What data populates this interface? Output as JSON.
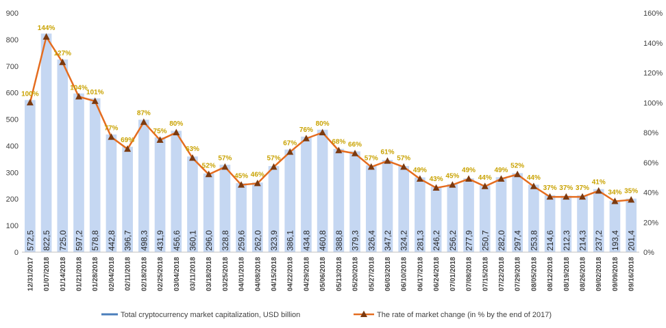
{
  "chart_data": {
    "type": "bar",
    "categories": [
      "12/31/2017",
      "01/07/2018",
      "01/14/2018",
      "01/21/2018",
      "01/28/2018",
      "02/04/2018",
      "02/11/2018",
      "02/18/2018",
      "02/25/2018",
      "03/04/2018",
      "03/11/2018",
      "03/18/2018",
      "03/25/2018",
      "04/01/2018",
      "04/08/2018",
      "04/15/2018",
      "04/22/2018",
      "04/29/2018",
      "05/06/2018",
      "05/13/2018",
      "05/20/2018",
      "05/27/2018",
      "06/03/2018",
      "06/10/2018",
      "06/17/2018",
      "06/24/2018",
      "07/01/2018",
      "07/08/2018",
      "07/15/2018",
      "07/22/2018",
      "07/29/2018",
      "08/05/2018",
      "08/12/2018",
      "08/19/2018",
      "08/26/2018",
      "09/02/2018",
      "09/09/2018",
      "09/16/2018"
    ],
    "series": [
      {
        "name": "Total cryptocurrency market capitalization, USD billion",
        "type": "bar",
        "axis": "left",
        "color": "#c5d7f2",
        "values": [
          572.5,
          822.5,
          725.0,
          597.2,
          578.8,
          442.8,
          396.7,
          498.3,
          431.9,
          456.6,
          360.1,
          296.0,
          328.8,
          259.6,
          262.0,
          323.9,
          386.1,
          434.8,
          460.8,
          388.8,
          379.3,
          326.4,
          347.2,
          324.2,
          281.3,
          246.2,
          256.2,
          277.9,
          250.7,
          282.0,
          297.4,
          253.8,
          214.6,
          212.3,
          214.3,
          237.2,
          193.4,
          201.4
        ],
        "labels": [
          "572,5",
          "822,5",
          "725,0",
          "597,2",
          "578,8",
          "442,8",
          "396,7",
          "498,3",
          "431,9",
          "456,6",
          "360,1",
          "296,0",
          "328,8",
          "259,6",
          "262,0",
          "323,9",
          "386,1",
          "434,8",
          "460,8",
          "388,8",
          "379,3",
          "326,4",
          "347,2",
          "324,2",
          "281,3",
          "246,2",
          "256,2",
          "277,9",
          "250,7",
          "282,0",
          "297,4",
          "253,8",
          "214,6",
          "212,3",
          "214,3",
          "237,2",
          "193,4",
          "201,4"
        ]
      },
      {
        "name": "The rate of market change (in % by the end of 2017)",
        "type": "line",
        "axis": "right",
        "color": "#e46c1f",
        "marker_color": "#7b3a10",
        "label_color": "#c9a200",
        "values": [
          100,
          144,
          127,
          104,
          101,
          77,
          69,
          87,
          75,
          80,
          63,
          52,
          57,
          45,
          46,
          57,
          67,
          76,
          80,
          68,
          66,
          57,
          61,
          57,
          49,
          43,
          45,
          49,
          44,
          49,
          52,
          44,
          37,
          37,
          37,
          41,
          34,
          35
        ],
        "labels": [
          "100%",
          "144%",
          "127%",
          "104%",
          "101%",
          "77%",
          "69%",
          "87%",
          "75%",
          "80%",
          "63%",
          "52%",
          "57%",
          "45%",
          "46%",
          "57%",
          "67%",
          "76%",
          "80%",
          "68%",
          "66%",
          "57%",
          "61%",
          "57%",
          "49%",
          "43%",
          "45%",
          "49%",
          "44%",
          "49%",
          "52%",
          "44%",
          "37%",
          "37%",
          "37%",
          "41%",
          "34%",
          "35%"
        ]
      }
    ],
    "y_left": {
      "lim": [
        0,
        900
      ],
      "ticks": [
        "0",
        "100",
        "200",
        "300",
        "400",
        "500",
        "600",
        "700",
        "800",
        "900"
      ]
    },
    "y_right": {
      "lim": [
        0,
        160
      ],
      "ticks": [
        "0%",
        "20%",
        "40%",
        "60%",
        "80%",
        "100%",
        "120%",
        "140%",
        "160%"
      ]
    },
    "grid": false,
    "legend": "bottom"
  }
}
